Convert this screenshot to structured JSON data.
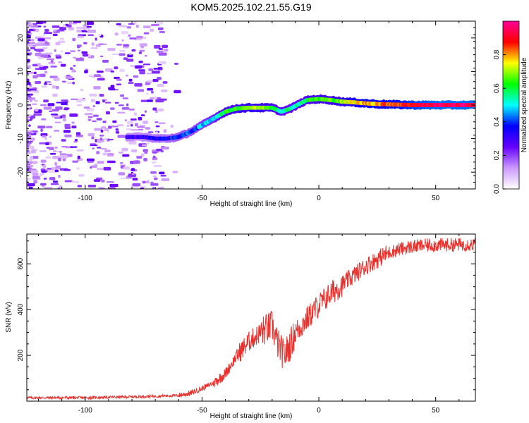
{
  "title": "KOM5.2025.102.21.55.G19",
  "chart_data": [
    {
      "type": "heatmap",
      "xlabel": "Height of straight line (km)",
      "ylabel": "Frequency (Hz)",
      "xlim": [
        -125,
        67
      ],
      "ylim": [
        -25,
        25
      ],
      "xticks": [
        -100,
        -50,
        0,
        50
      ],
      "yticks": [
        -20,
        -10,
        0,
        10,
        20
      ],
      "colorbar": {
        "label": "Normalized spectral amplitude",
        "range": [
          0,
          1
        ],
        "ticks": [
          "0.0",
          "0.2",
          "0.4",
          "0.6",
          "0.8"
        ],
        "colors": [
          "#ffffff",
          "#cc99ff",
          "#6600ff",
          "#0000ff",
          "#00ffff",
          "#00ff00",
          "#ffff00",
          "#ff0000",
          "#ff0099"
        ]
      },
      "ridge": {
        "height_km": [
          -82,
          -75,
          -70,
          -65,
          -60,
          -55,
          -50,
          -45,
          -40,
          -35,
          -30,
          -25,
          -20,
          -16,
          -12,
          -8,
          -5,
          0,
          5,
          10,
          15,
          20,
          25,
          30,
          35,
          40,
          50,
          60,
          67
        ],
        "frequency_hz": [
          -9.5,
          -9.5,
          -10,
          -10,
          -9.5,
          -8,
          -6,
          -4,
          -2,
          -1,
          -0.8,
          -0.8,
          -0.8,
          -2,
          -1,
          0.5,
          1.5,
          1.8,
          1.5,
          1,
          0.8,
          0.5,
          0.3,
          0.2,
          0.1,
          0,
          0,
          0,
          0
        ],
        "amplitude": [
          0.3,
          0.3,
          0.35,
          0.35,
          0.4,
          0.4,
          0.45,
          0.5,
          0.6,
          0.65,
          0.7,
          0.7,
          0.65,
          0.55,
          0.55,
          0.55,
          0.6,
          0.65,
          0.65,
          0.7,
          0.75,
          0.8,
          0.8,
          0.85,
          0.85,
          0.9,
          0.95,
          0.95,
          0.95
        ]
      }
    },
    {
      "type": "line",
      "xlabel": "Height of straight line (km)",
      "ylabel": "SNR (v/v)",
      "xlim": [
        -125,
        67
      ],
      "ylim": [
        0,
        730
      ],
      "xticks": [
        -100,
        -50,
        0,
        50
      ],
      "yticks": [
        200,
        400,
        600
      ],
      "color": "#e8312d",
      "trend": {
        "x": [
          -125,
          -100,
          -75,
          -60,
          -55,
          -50,
          -45,
          -40,
          -35,
          -30,
          -25,
          -20,
          -18,
          -15,
          -13,
          -10,
          -5,
          0,
          5,
          10,
          15,
          20,
          25,
          30,
          35,
          40,
          45,
          50,
          55,
          60,
          67
        ],
        "y": [
          15,
          15,
          20,
          25,
          35,
          55,
          80,
          120,
          200,
          260,
          300,
          330,
          260,
          200,
          230,
          300,
          360,
          420,
          470,
          510,
          550,
          590,
          620,
          650,
          665,
          675,
          680,
          682,
          683,
          684,
          685
        ]
      }
    }
  ]
}
